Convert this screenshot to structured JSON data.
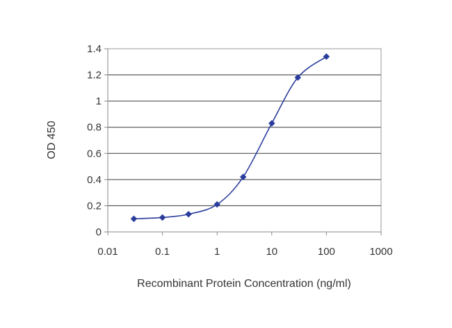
{
  "chart_data": {
    "type": "scatter",
    "title": "",
    "xlabel": "Recombinant Protein Concentration (ng/ml)",
    "ylabel": "OD 450",
    "xscale": "log",
    "xlim": [
      0.01,
      1000
    ],
    "ylim": [
      0,
      1.4
    ],
    "grid": "horizontal",
    "x_ticks": [
      "0.01",
      "0.1",
      "1",
      "10",
      "100",
      "1000"
    ],
    "y_ticks": [
      "0",
      "0.2",
      "0.4",
      "0.6",
      "0.8",
      "1",
      "1.2",
      "1.4"
    ],
    "series": [
      {
        "x": [
          0.03,
          0.1,
          0.3,
          1,
          3,
          10,
          30,
          100
        ],
        "y": [
          0.1,
          0.11,
          0.135,
          0.21,
          0.42,
          0.83,
          1.18,
          1.34
        ],
        "marker": "diamond",
        "line": "smooth"
      }
    ],
    "colors": {
      "series": "#2b3d9c",
      "grid": "#3a3a3a",
      "axis": "#888888",
      "text": "#333333"
    }
  }
}
